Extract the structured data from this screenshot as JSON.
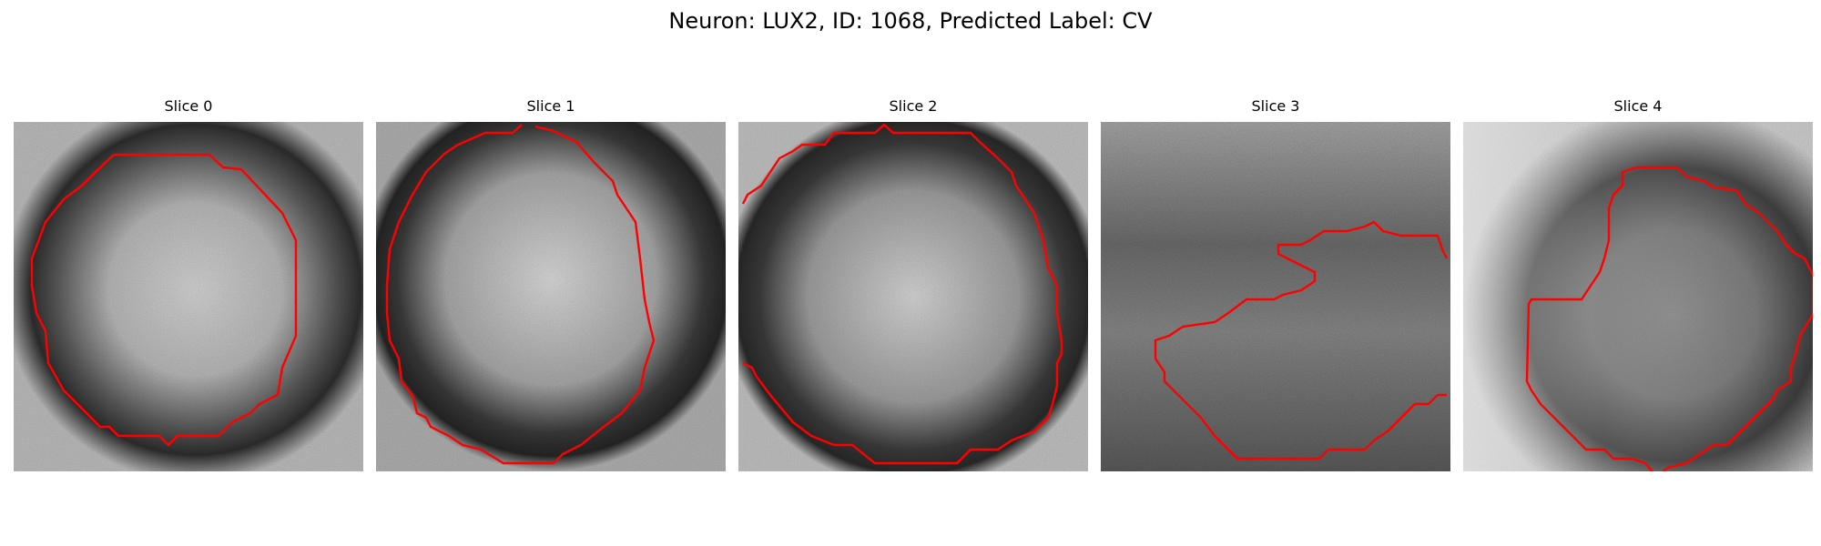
{
  "figure": {
    "title": "Neuron: LUX2, ID: 1068, Predicted Label: CV"
  },
  "colors": {
    "contour": "#ff0000",
    "background": "#ffffff",
    "colormap": "grayscale"
  },
  "panels": [
    {
      "title": "Slice 0"
    },
    {
      "title": "Slice 1"
    },
    {
      "title": "Slice 2"
    },
    {
      "title": "Slice 3"
    },
    {
      "title": "Slice 4"
    }
  ]
}
